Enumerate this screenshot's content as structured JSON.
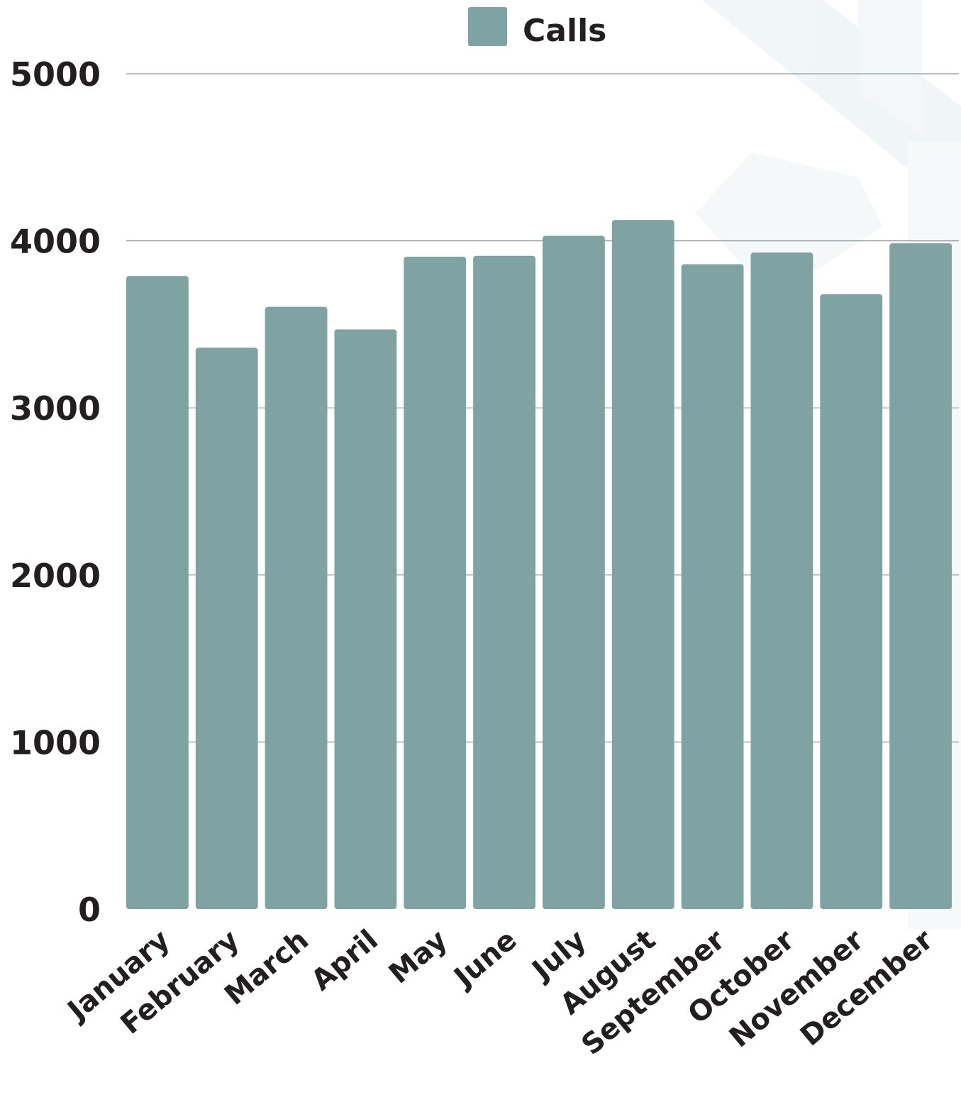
{
  "legend": {
    "label": "Calls",
    "color": "#7fa3a2"
  },
  "chart_data": {
    "type": "bar",
    "title": "",
    "xlabel": "",
    "ylabel": "",
    "legend_position": "top-center",
    "grid": true,
    "ylim": [
      0,
      5000
    ],
    "yticks": [
      0,
      1000,
      2000,
      3000,
      4000,
      5000
    ],
    "categories": [
      "January",
      "February",
      "March",
      "April",
      "May",
      "June",
      "July",
      "August",
      "September",
      "October",
      "November",
      "December"
    ],
    "series": [
      {
        "name": "Calls",
        "color": "#7fa3a2",
        "values": [
          3790,
          3360,
          3605,
          3470,
          3905,
          3910,
          4030,
          4125,
          3860,
          3930,
          3680,
          3985
        ]
      }
    ]
  }
}
